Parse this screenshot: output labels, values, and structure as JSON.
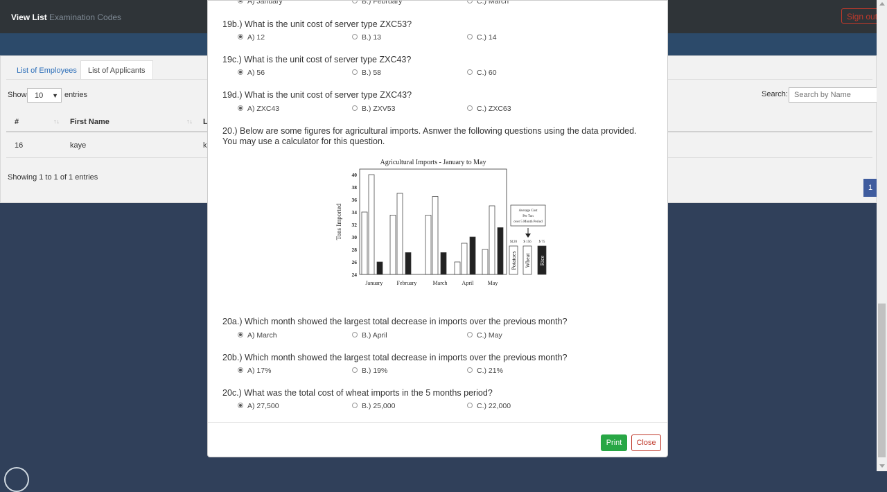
{
  "nav": {
    "view_list": "View List",
    "exam_codes": "Examination Codes",
    "sign_out": "Sign out"
  },
  "tabs": {
    "employees": "List of Employees",
    "applicants": "List of Applicants"
  },
  "table_controls": {
    "show": "Show",
    "length": "10",
    "entries": "entries",
    "search_label": "Search:",
    "search_placeholder": "Search by Name"
  },
  "table": {
    "headers": [
      "#",
      "First Name",
      "L"
    ],
    "row": {
      "num": "16",
      "first_name": "kaye",
      "last_partial": "k"
    },
    "showing": "Showing 1 to 1 of 1 entries",
    "page": "1"
  },
  "questions": [
    {
      "label": "",
      "options": [
        "A) January",
        "B.) February",
        "C.) March"
      ],
      "selected": 0
    },
    {
      "label": "19b.) What is the unit cost of server type ZXC53?",
      "options": [
        "A) 12",
        "B.) 13",
        "C.) 14"
      ],
      "selected": 0
    },
    {
      "label": "19c.) What is the unit cost of server type ZXC43?",
      "options": [
        "A) 56",
        "B.) 58",
        "C.) 60"
      ],
      "selected": 0
    },
    {
      "label": "19d.) What is the unit cost of server type ZXC43?",
      "options": [
        "A) ZXC43",
        "B.) ZXV53",
        "C.) ZXC63"
      ],
      "selected": 0
    },
    {
      "label": "20.) Below are some figures for agricultural imports. Asnwer the following questions using the data provided. You may use a calculator for this question.",
      "options": [],
      "selected": -1
    },
    {
      "label": "20a.) Which month showed the largest total decrease in imports over the previous month?",
      "options": [
        "A) March",
        "B.) April",
        "C.) May"
      ],
      "selected": 0
    },
    {
      "label": "20b.) Which month showed the largest total decrease in imports over the previous month?",
      "options": [
        "A) 17%",
        "B.) 19%",
        "C.) 21%"
      ],
      "selected": 0
    },
    {
      "label": "20c.) What was the total cost of wheat imports in the 5 months period?",
      "options": [
        "A) 27,500",
        "B.) 25,000",
        "C.) 22,000"
      ],
      "selected": 0
    }
  ],
  "buttons": {
    "print": "Print",
    "close": "Close"
  },
  "chart_data": {
    "type": "bar",
    "title": "Agricultural Imports - January to May",
    "ylabel": "Tons Imported",
    "xlabel": "",
    "ylim": [
      24,
      40
    ],
    "yticks": [
      24,
      26,
      28,
      30,
      32,
      34,
      36,
      38,
      40
    ],
    "categories": [
      "January",
      "February",
      "March",
      "April",
      "May"
    ],
    "series": [
      {
        "name": "Potatoes",
        "color": "#ffffff",
        "values": [
          34,
          33.5,
          33.5,
          26,
          28
        ]
      },
      {
        "name": "Wheat",
        "color": "#ffffff",
        "values": [
          40,
          37,
          36.5,
          29,
          35
        ]
      },
      {
        "name": "Rice",
        "color": "#222222",
        "values": [
          26,
          27.5,
          27.5,
          30,
          31.5
        ]
      }
    ],
    "legend_box": "Average Cost Per Ton over 5 Month Period",
    "legend_costs": [
      "$120",
      "$ 156",
      "$ 75"
    ],
    "legend_items": [
      "Potatoes",
      "Wheat",
      "Rice"
    ]
  }
}
